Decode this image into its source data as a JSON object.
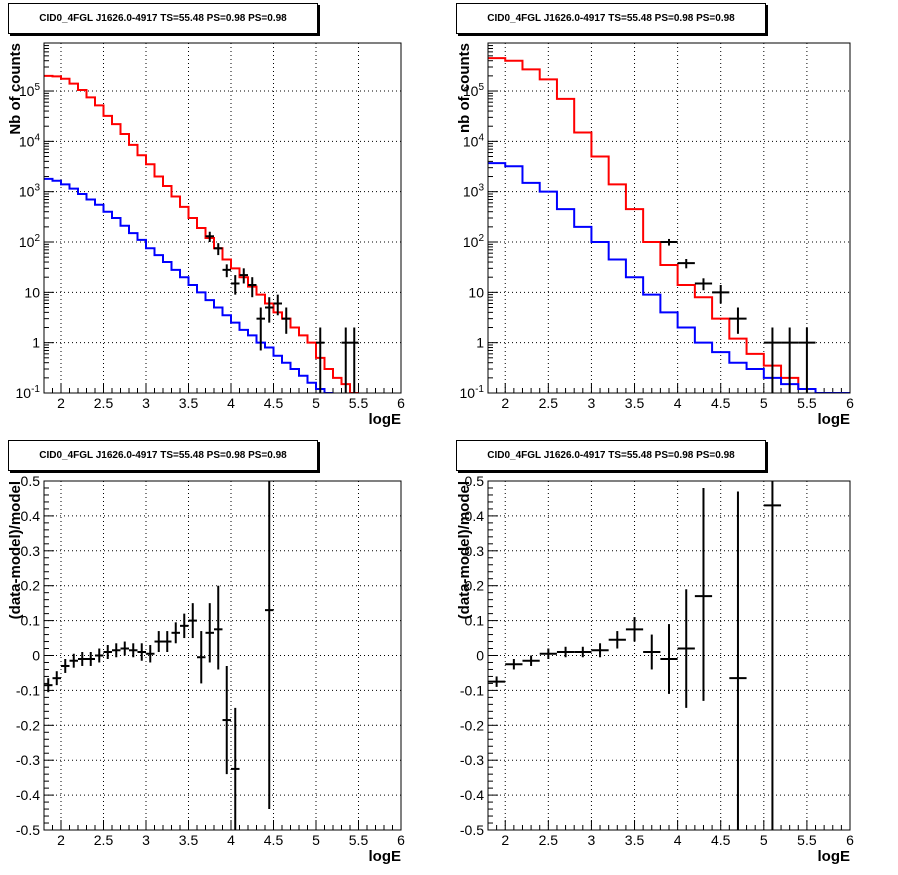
{
  "chart_data": [
    {
      "type": "line",
      "title": "CID0_4FGL J1626.0-4917 TS=55.48 PS=0.98 PS=0.98",
      "xlabel": "logE",
      "ylabel": "Nb of counts",
      "xlim": [
        1.8,
        6.0
      ],
      "ylim": [
        0.1,
        900000
      ],
      "yscale": "log",
      "grid": true,
      "xticks": [
        "2",
        "2.5",
        "3",
        "3.5",
        "4",
        "4.5",
        "5",
        "5.5",
        "6"
      ],
      "yticks": [
        "10^-1",
        "1",
        "10",
        "10^2",
        "10^3",
        "10^4",
        "10^5"
      ],
      "series": [
        {
          "color": "#ff0000",
          "style": "step",
          "edges": [
            1.8,
            1.9,
            2.0,
            2.1,
            2.2,
            2.3,
            2.4,
            2.5,
            2.6,
            2.7,
            2.8,
            2.9,
            3.0,
            3.1,
            3.2,
            3.3,
            3.4,
            3.5,
            3.6,
            3.7,
            3.8,
            3.9,
            4.0,
            4.1,
            4.2,
            4.3,
            4.4,
            4.5,
            4.6,
            4.7,
            4.8,
            4.9,
            5.0,
            5.1,
            5.2,
            5.3,
            5.4,
            5.5
          ],
          "values": [
            200000,
            195000,
            175000,
            140000,
            105000,
            75000,
            52000,
            32000,
            22000,
            14000,
            8500,
            5300,
            3500,
            2000,
            1300,
            800,
            500,
            300,
            190,
            120,
            75,
            45,
            30,
            20,
            13,
            9,
            6,
            4,
            3,
            2,
            1.4,
            1,
            0.5,
            0.3,
            0.2,
            0.15,
            0.1
          ]
        },
        {
          "color": "#0000ff",
          "style": "step",
          "edges": [
            1.8,
            1.9,
            2.0,
            2.1,
            2.2,
            2.3,
            2.4,
            2.5,
            2.6,
            2.7,
            2.8,
            2.9,
            3.0,
            3.1,
            3.2,
            3.3,
            3.4,
            3.5,
            3.6,
            3.7,
            3.8,
            3.9,
            4.0,
            4.1,
            4.2,
            4.3,
            4.4,
            4.5,
            4.6,
            4.7,
            4.8,
            4.9,
            5.0,
            5.1,
            5.2
          ],
          "values": [
            1800,
            1650,
            1400,
            1150,
            900,
            700,
            550,
            400,
            300,
            210,
            150,
            110,
            75,
            55,
            40,
            28,
            20,
            14,
            10,
            7,
            5,
            3.5,
            2.5,
            1.8,
            1.4,
            1,
            0.8,
            0.55,
            0.4,
            0.3,
            0.22,
            0.16,
            0.12,
            0.1
          ]
        },
        {
          "color": "#000000",
          "style": "errorbar",
          "x": [
            3.75,
            3.85,
            3.95,
            4.05,
            4.15,
            4.25,
            4.35,
            4.45,
            4.55,
            4.65,
            5.05,
            5.35,
            5.45
          ],
          "xerr": 0.05,
          "y": [
            130,
            75,
            28,
            15,
            22,
            14,
            3,
            5,
            6,
            3,
            1,
            1,
            1
          ],
          "ylo": [
            100,
            55,
            20,
            9,
            15,
            8,
            0.7,
            2.5,
            3.5,
            1.5,
            0.1,
            0.1,
            0.1
          ],
          "yhi": [
            160,
            95,
            36,
            22,
            30,
            20,
            5,
            8,
            9,
            5,
            2,
            2,
            2
          ]
        }
      ]
    },
    {
      "type": "line",
      "title": "CID0_4FGL J1626.0-4917 TS=55.48 PS=0.98 PS=0.98",
      "xlabel": "logE",
      "ylabel": "nb of counts",
      "xlim": [
        1.8,
        6.0
      ],
      "ylim": [
        0.1,
        900000
      ],
      "yscale": "log",
      "grid": true,
      "xticks": [
        "2",
        "2.5",
        "3",
        "3.5",
        "4",
        "4.5",
        "5",
        "5.5",
        "6"
      ],
      "yticks": [
        "10^-1",
        "1",
        "10",
        "10^2",
        "10^3",
        "10^4",
        "10^5"
      ],
      "series": [
        {
          "color": "#ff0000",
          "style": "step",
          "edges": [
            1.8,
            2.0,
            2.2,
            2.4,
            2.6,
            2.8,
            3.0,
            3.2,
            3.4,
            3.6,
            3.8,
            4.0,
            4.2,
            4.4,
            4.6,
            4.8,
            5.0,
            5.2,
            5.4,
            5.6
          ],
          "values": [
            450000,
            400000,
            270000,
            170000,
            70000,
            15000,
            5000,
            1400,
            450,
            100,
            35,
            14,
            8,
            3,
            1.2,
            0.6,
            0.35,
            0.2,
            0.12
          ]
        },
        {
          "color": "#0000ff",
          "style": "step",
          "edges": [
            1.8,
            2.0,
            2.2,
            2.4,
            2.6,
            2.8,
            3.0,
            3.2,
            3.4,
            3.6,
            3.8,
            4.0,
            4.2,
            4.4,
            4.6,
            4.8,
            5.0,
            5.2,
            5.4,
            5.6,
            5.8,
            6.0
          ],
          "values": [
            3700,
            3200,
            1500,
            1000,
            450,
            200,
            100,
            45,
            20,
            9,
            4,
            2,
            1,
            0.65,
            0.4,
            0.3,
            0.2,
            0.15,
            0.12,
            0.1,
            0.1
          ]
        },
        {
          "color": "#000000",
          "style": "errorbar",
          "x": [
            3.9,
            4.1,
            4.3,
            4.5,
            4.7,
            5.1,
            5.3,
            5.5
          ],
          "xerr": 0.1,
          "y": [
            100,
            38,
            15,
            10,
            3,
            1,
            1,
            1
          ],
          "ylo": [
            85,
            30,
            11,
            6,
            1.5,
            0.1,
            0.1,
            0.1
          ],
          "yhi": [
            115,
            46,
            19,
            14,
            5,
            2,
            2,
            2
          ]
        }
      ]
    },
    {
      "type": "scatter",
      "title": "CID0_4FGL J1626.0-4917 TS=55.48 PS=0.98 PS=0.98",
      "xlabel": "logE",
      "ylabel": "(data-model)/model",
      "xlim": [
        1.8,
        6.0
      ],
      "ylim": [
        -0.5,
        0.5
      ],
      "grid": true,
      "xticks": [
        "2",
        "2.5",
        "3",
        "3.5",
        "4",
        "4.5",
        "5",
        "5.5",
        "6"
      ],
      "yticks": [
        "-0.5",
        "-0.4",
        "-0.3",
        "-0.2",
        "-0.1",
        "0",
        "0.1",
        "0.2",
        "0.3",
        "0.4",
        "0.5"
      ],
      "series": [
        {
          "color": "#000000",
          "style": "errorbar",
          "xerr": 0.05,
          "x": [
            1.85,
            1.95,
            2.05,
            2.15,
            2.25,
            2.35,
            2.45,
            2.55,
            2.65,
            2.75,
            2.85,
            2.95,
            3.05,
            3.15,
            3.25,
            3.35,
            3.45,
            3.55,
            3.65,
            3.75,
            3.85,
            3.95,
            4.05,
            4.45
          ],
          "y": [
            -0.085,
            -0.065,
            -0.03,
            -0.015,
            -0.01,
            -0.01,
            0.0,
            0.01,
            0.015,
            0.02,
            0.015,
            0.01,
            0.005,
            0.04,
            0.04,
            0.065,
            0.085,
            0.1,
            -0.005,
            0.065,
            0.075,
            -0.185,
            -0.325,
            0.13
          ],
          "ylo": [
            -0.105,
            -0.085,
            -0.05,
            -0.035,
            -0.03,
            -0.03,
            -0.02,
            -0.01,
            -0.005,
            0.0,
            -0.005,
            -0.015,
            -0.02,
            0.01,
            0.01,
            0.035,
            0.05,
            0.05,
            -0.08,
            -0.02,
            -0.04,
            -0.34,
            -0.5,
            -0.44
          ],
          "yhi": [
            -0.065,
            -0.045,
            -0.01,
            0.005,
            0.01,
            0.01,
            0.02,
            0.03,
            0.035,
            0.04,
            0.035,
            0.035,
            0.03,
            0.07,
            0.07,
            0.095,
            0.12,
            0.15,
            0.07,
            0.15,
            0.2,
            -0.03,
            -0.15,
            0.5
          ]
        }
      ]
    },
    {
      "type": "scatter",
      "title": "CID0_4FGL J1626.0-4917 TS=55.48 PS=0.98 PS=0.98",
      "xlabel": "logE",
      "ylabel": "(data-model)/model",
      "xlim": [
        1.8,
        6.0
      ],
      "ylim": [
        -0.5,
        0.5
      ],
      "grid": true,
      "xticks": [
        "2",
        "2.5",
        "3",
        "3.5",
        "4",
        "4.5",
        "5",
        "5.5",
        "6"
      ],
      "yticks": [
        "-0.5",
        "-0.4",
        "-0.3",
        "-0.2",
        "-0.1",
        "0",
        "0.1",
        "0.2",
        "0.3",
        "0.4",
        "0.5"
      ],
      "series": [
        {
          "color": "#000000",
          "style": "errorbar",
          "xerr": 0.1,
          "x": [
            1.9,
            2.1,
            2.3,
            2.5,
            2.7,
            2.9,
            3.1,
            3.3,
            3.5,
            3.7,
            3.9,
            4.1,
            4.3,
            4.7,
            5.1
          ],
          "y": [
            -0.075,
            -0.025,
            -0.015,
            0.005,
            0.01,
            0.01,
            0.015,
            0.045,
            0.075,
            0.01,
            -0.01,
            0.02,
            0.17,
            -0.065,
            0.43
          ],
          "ylo": [
            -0.09,
            -0.04,
            -0.03,
            -0.01,
            -0.005,
            -0.005,
            -0.005,
            0.02,
            0.04,
            -0.04,
            -0.11,
            -0.15,
            -0.13,
            -0.5,
            -0.5
          ],
          "yhi": [
            -0.06,
            -0.01,
            0.0,
            0.02,
            0.025,
            0.025,
            0.035,
            0.07,
            0.11,
            0.06,
            0.09,
            0.19,
            0.48,
            0.47,
            0.5
          ]
        }
      ]
    }
  ]
}
